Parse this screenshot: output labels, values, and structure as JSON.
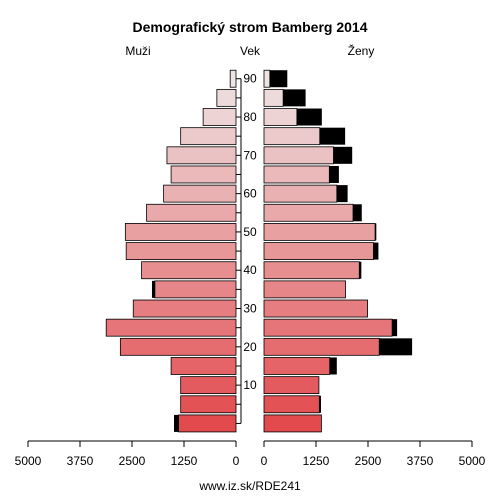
{
  "chart_data": {
    "type": "bar",
    "title": "Demografický strom Bamberg 2014",
    "left_label": "Muži",
    "center_label": "Vek",
    "right_label": "Ženy",
    "footer": "www.iz.sk/RDE241",
    "x_ticks_left": [
      "5000",
      "3750",
      "2500",
      "1250",
      "0"
    ],
    "x_ticks_right": [
      "0",
      "1250",
      "2500",
      "3750",
      "5000"
    ],
    "x_tick_values": [
      5000,
      3750,
      2500,
      1250,
      0
    ],
    "age_ticks": [
      "10",
      "20",
      "30",
      "40",
      "50",
      "60",
      "70",
      "80",
      "90"
    ],
    "xlim": [
      0,
      5000
    ],
    "age_groups": [
      "0-4",
      "5-9",
      "10-14",
      "15-19",
      "20-24",
      "25-29",
      "30-34",
      "35-39",
      "40-44",
      "45-49",
      "50-54",
      "55-59",
      "60-64",
      "65-69",
      "70-74",
      "75-79",
      "80-84",
      "85-89",
      "90+"
    ],
    "series": [
      {
        "name": "Muži",
        "values": [
          1380,
          1330,
          1330,
          1560,
          2780,
          3120,
          2470,
          1950,
          2270,
          2640,
          2660,
          2150,
          1740,
          1560,
          1660,
          1330,
          790,
          460,
          140
        ],
        "surplus": [
          110,
          0,
          0,
          0,
          0,
          0,
          0,
          70,
          0,
          0,
          0,
          0,
          0,
          0,
          0,
          0,
          0,
          0,
          0
        ]
      },
      {
        "name": "Ženy",
        "values": [
          1380,
          1330,
          1320,
          1580,
          2770,
          3080,
          2490,
          1960,
          2290,
          2630,
          2670,
          2140,
          1750,
          1570,
          1670,
          1340,
          790,
          460,
          140
        ],
        "surplus": [
          0,
          40,
          0,
          170,
          790,
          120,
          0,
          0,
          50,
          120,
          30,
          210,
          260,
          230,
          450,
          610,
          600,
          540,
          420
        ]
      }
    ]
  }
}
